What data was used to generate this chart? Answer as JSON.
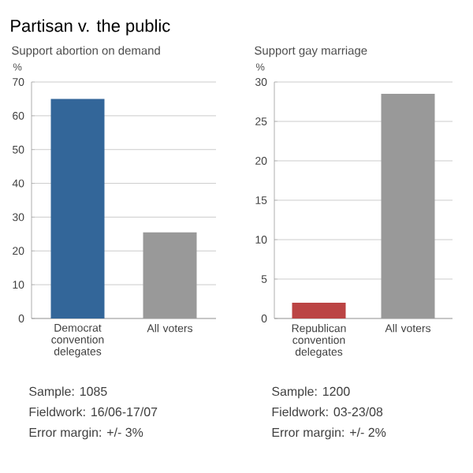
{
  "chart_data": [
    {
      "type": "bar",
      "title": "Partisan v. the public",
      "subtitle": "Support abortion on demand",
      "ylabel": "%",
      "categories": [
        "Democrat convention delegates",
        "All voters"
      ],
      "values": [
        65,
        25.5
      ],
      "colors": [
        "#336699",
        "#999999"
      ],
      "ylim": [
        0,
        70
      ],
      "yticks": [
        0,
        10,
        20,
        30,
        40,
        50,
        60,
        70
      ],
      "grid": "y",
      "annotations": [
        "Sample: 1085",
        "Fieldwork: 16/06-17/07",
        "Error margin: +/- 3%"
      ]
    },
    {
      "type": "bar",
      "subtitle": "Support gay marriage",
      "ylabel": "%",
      "categories": [
        "Republican convention delegates",
        "All voters"
      ],
      "values": [
        2,
        28.5
      ],
      "colors": [
        "#bb4444",
        "#999999"
      ],
      "ylim": [
        0,
        30
      ],
      "yticks": [
        0,
        5,
        10,
        15,
        20,
        25,
        30
      ],
      "grid": "y",
      "annotations": [
        "Sample: 1200",
        "Fieldwork: 03-23/08",
        "Error margin: +/- 2%"
      ]
    }
  ]
}
